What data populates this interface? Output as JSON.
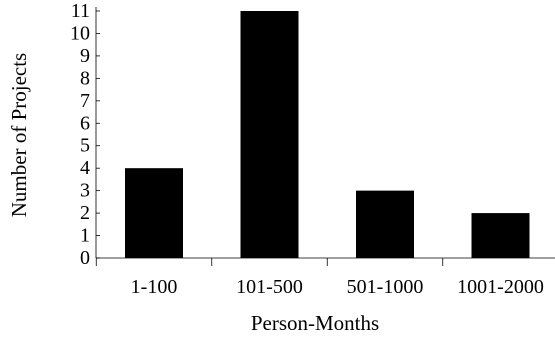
{
  "chart_data": {
    "type": "bar",
    "categories": [
      "1-100",
      "101-500",
      "501-1000",
      "1001-2000"
    ],
    "values": [
      4,
      11,
      3,
      2
    ],
    "xlabel": "Person-Months",
    "ylabel": "Number of Projects",
    "ylim": [
      0,
      11
    ],
    "yticks": [
      0,
      1,
      2,
      3,
      4,
      5,
      6,
      7,
      8,
      9,
      10,
      11
    ],
    "grid": false,
    "bar_color": "#000000"
  }
}
